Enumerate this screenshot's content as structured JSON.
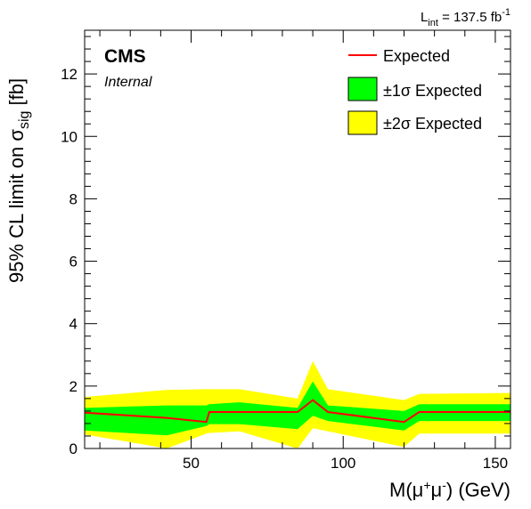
{
  "colors": {
    "expected": "#ff0000",
    "one_sigma": "#00ff00",
    "two_sigma": "#ffff00",
    "frame": "#000000"
  },
  "labels": {
    "lumi_main": "L",
    "lumi_sub": "int",
    "lumi_value": " = 137.5 fb",
    "lumi_sup": "-1",
    "cms": "CMS",
    "internal": "Internal",
    "ylabel_main": "95% CL limit on  σ",
    "ylabel_sub": "sig",
    "ylabel_unit": " [fb]",
    "xlabel_pre": "M(μ",
    "xlabel_sup1": "+",
    "xlabel_mid": "μ",
    "xlabel_sup2": "-",
    "xlabel_post": ") (GeV)"
  },
  "chart_data": {
    "type": "line",
    "xlim": [
      15,
      155
    ],
    "ylim": [
      0,
      13.4
    ],
    "xticks": [
      50,
      100,
      150
    ],
    "yticks": [
      0,
      2,
      4,
      6,
      8,
      10,
      12
    ],
    "grid": false,
    "legend_position": "top-right",
    "legend": [
      {
        "key": "expected",
        "label": "Expected"
      },
      {
        "key": "one_sigma",
        "label": "±1σ Expected"
      },
      {
        "key": "two_sigma",
        "label": "±2σ Expected"
      }
    ],
    "x": [
      15,
      42,
      55,
      56,
      66,
      85,
      90,
      95,
      120,
      125,
      155
    ],
    "expected": [
      1.15,
      0.98,
      0.85,
      1.17,
      1.17,
      1.17,
      1.55,
      1.17,
      0.85,
      1.17,
      1.17
    ],
    "one_sigma_low": [
      0.58,
      0.42,
      0.72,
      0.78,
      0.78,
      0.62,
      1.05,
      0.88,
      0.58,
      0.88,
      0.88
    ],
    "one_sigma_high": [
      1.3,
      1.38,
      1.38,
      1.42,
      1.48,
      1.3,
      2.15,
      1.38,
      1.2,
      1.42,
      1.42
    ],
    "two_sigma_low": [
      0.45,
      0.0,
      0.48,
      0.5,
      0.55,
      0.0,
      0.65,
      0.55,
      0.05,
      0.48,
      0.48
    ],
    "two_sigma_high": [
      1.65,
      1.88,
      1.9,
      1.9,
      1.9,
      1.6,
      2.8,
      1.9,
      1.55,
      1.75,
      1.78
    ]
  }
}
